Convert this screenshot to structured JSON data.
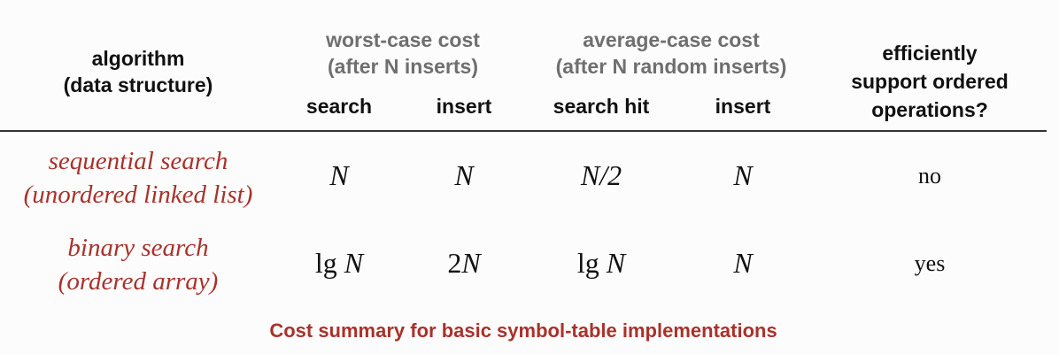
{
  "header": {
    "algorithm": [
      "algorithm",
      "(data structure)"
    ],
    "worst_case": [
      "worst-case cost",
      "(after N inserts)"
    ],
    "average_case": [
      "average-case cost",
      "(after N random inserts)"
    ],
    "ordered_ops": [
      "efficiently",
      "support ordered",
      "operations?"
    ],
    "subcolumns": [
      "search",
      "insert",
      "search hit",
      "insert"
    ]
  },
  "rows": [
    {
      "label": [
        "sequential search",
        "(unordered linked list)"
      ],
      "worst_search": "N",
      "worst_insert": "N",
      "avg_search_hit": "N/2",
      "avg_insert": "N",
      "ordered": "no"
    },
    {
      "label": [
        "binary search",
        "(ordered array)"
      ],
      "worst_search_prefix": "lg",
      "worst_search_var": "N",
      "worst_insert_prefix": "2",
      "worst_insert_var": "N",
      "avg_search_hit_prefix": "lg",
      "avg_search_hit_var": "N",
      "avg_insert": "N",
      "ordered": "yes"
    }
  ],
  "caption": "Cost summary for basic symbol-table implementations",
  "colors": {
    "accent_red": "#a8322b",
    "header_grey": "#6f6f6f",
    "text": "#111111"
  }
}
